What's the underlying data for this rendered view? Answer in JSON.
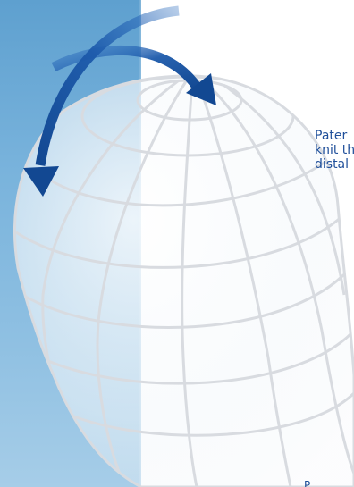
{
  "colors": {
    "panel_blue": "#6fa9d6",
    "arrow_blue": "#1a56a8",
    "grid_line": "#d8dbe0",
    "text_blue": "#1f4f9a",
    "background": "#ffffff"
  },
  "side_text": {
    "line1": "Pater",
    "line2": "knit th",
    "line3": "distal"
  },
  "bottom_text": {
    "line1": "P"
  },
  "artwork": {
    "illustration": "wireframe-globe-icon",
    "arrow_left": "curved-arrow-down-left-icon",
    "arrow_right": "curved-arrow-down-right-icon"
  }
}
